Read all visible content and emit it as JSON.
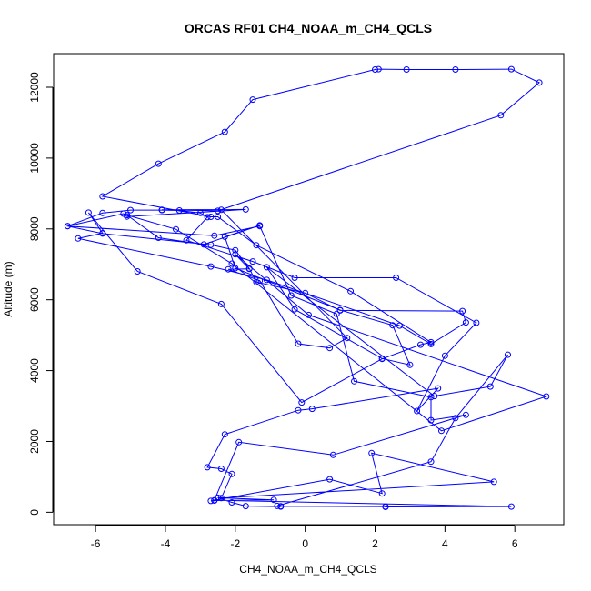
{
  "chart_data": {
    "type": "line",
    "title": "ORCAS RF01 CH4_NOAA_m_CH4_QCLS",
    "xlabel": "CH4_NOAA_m_CH4_QCLS",
    "ylabel": "Altitude (m)",
    "xlim": [
      -7.2,
      7.4
    ],
    "ylim": [
      -350,
      12950
    ],
    "x_ticks": [
      -6,
      -4,
      -2,
      0,
      2,
      4,
      6
    ],
    "y_ticks": [
      0,
      2000,
      4000,
      6000,
      8000,
      10000,
      12000
    ],
    "x_tick_labels": [
      "-6",
      "-4",
      "-2",
      "0",
      "2",
      "4",
      "6"
    ],
    "y_tick_labels": [
      "0",
      "2000",
      "4000",
      "6000",
      "8000",
      "10000",
      "12000"
    ],
    "grid": false,
    "legend": "none",
    "colors": {
      "series": "#0000ff",
      "axes": "#000000",
      "background": "#ffffff"
    },
    "series": [
      {
        "points": [
          [
            -0.7,
            160
          ],
          [
            -1.7,
            175
          ],
          [
            -2.1,
            280
          ],
          [
            -2.5,
            410
          ],
          [
            -0.9,
            350
          ],
          [
            -2.6,
            330
          ],
          [
            -2.7,
            320
          ],
          [
            0.7,
            930
          ],
          [
            2.2,
            530
          ],
          [
            1.9,
            1670
          ],
          [
            5.4,
            860
          ],
          [
            -2.4,
            400
          ],
          [
            -2.1,
            1080
          ],
          [
            -2.4,
            1230
          ],
          [
            -2.8,
            1270
          ],
          [
            -2.3,
            2200
          ],
          [
            -0.2,
            2880
          ],
          [
            0.2,
            2920
          ],
          [
            3.8,
            3500
          ],
          [
            3.2,
            2860
          ],
          [
            4.0,
            4420
          ],
          [
            4.9,
            5350
          ],
          [
            2.6,
            6620
          ],
          [
            -0.3,
            6620
          ],
          [
            -1.5,
            7080
          ],
          [
            -3.4,
            7680
          ],
          [
            -2.8,
            8330
          ],
          [
            -3.0,
            8450
          ],
          [
            -3.6,
            8520
          ],
          [
            -4.1,
            8530
          ],
          [
            -5.0,
            8530
          ],
          [
            -5.8,
            8450
          ],
          [
            -6.8,
            8080
          ],
          [
            -5.8,
            7870
          ],
          [
            -2.7,
            7550
          ],
          [
            -2.0,
            7400
          ],
          [
            -1.6,
            6880
          ],
          [
            -1.4,
            6500
          ],
          [
            0.0,
            6190
          ],
          [
            1.0,
            5700
          ],
          [
            4.5,
            5680
          ],
          [
            4.6,
            5360
          ],
          [
            3.6,
            4750
          ],
          [
            2.7,
            5270
          ],
          [
            -1.1,
            6560
          ],
          [
            -2.7,
            6940
          ],
          [
            -6.5,
            7730
          ],
          [
            -5.8,
            7880
          ],
          [
            -6.2,
            8460
          ],
          [
            -4.8,
            6800
          ],
          [
            -2.4,
            5880
          ],
          [
            -0.1,
            3100
          ],
          [
            2.2,
            4330
          ],
          [
            3.3,
            4730
          ],
          [
            3.6,
            4800
          ],
          [
            1.3,
            6240
          ],
          [
            -1.4,
            7540
          ],
          [
            -2.5,
            8340
          ],
          [
            -2.7,
            8340
          ],
          [
            -5.8,
            8920
          ],
          [
            -4.2,
            9840
          ],
          [
            -2.3,
            10740
          ],
          [
            -1.5,
            11650
          ],
          [
            2.0,
            12500
          ],
          [
            2.1,
            12510
          ],
          [
            2.9,
            12500
          ],
          [
            4.3,
            12500
          ],
          [
            5.9,
            12510
          ],
          [
            6.7,
            12130
          ],
          [
            5.6,
            11210
          ],
          [
            -2.5,
            8510
          ],
          [
            -4.1,
            8540
          ],
          [
            -1.7,
            8550
          ],
          [
            -5.1,
            8350
          ],
          [
            -5.2,
            8430
          ],
          [
            -6.8,
            8080
          ],
          [
            -2.6,
            7810
          ],
          [
            -1.3,
            8080
          ],
          [
            -0.4,
            6120
          ],
          [
            0.9,
            5600
          ],
          [
            1.4,
            3700
          ],
          [
            3.6,
            3250
          ],
          [
            3.6,
            2600
          ],
          [
            4.6,
            2750
          ],
          [
            0.8,
            1620
          ],
          [
            -1.9,
            1980
          ],
          [
            -2.6,
            340
          ],
          [
            5.9,
            160
          ],
          [
            2.3,
            150
          ],
          [
            2.3,
            160
          ],
          [
            -0.7,
            170
          ],
          [
            -0.8,
            180
          ],
          [
            3.6,
            1430
          ],
          [
            4.3,
            2660
          ],
          [
            5.8,
            4450
          ],
          [
            5.3,
            3550
          ],
          [
            3.7,
            3280
          ],
          [
            -1.1,
            6920
          ],
          [
            -0.3,
            5730
          ],
          [
            2.2,
            4340
          ],
          [
            3.0,
            4160
          ],
          [
            2.5,
            5280
          ],
          [
            1.0,
            5710
          ],
          [
            -2.0,
            6890
          ],
          [
            -2.3,
            7780
          ],
          [
            -1.3,
            8100
          ],
          [
            -2.9,
            7560
          ],
          [
            -4.2,
            7750
          ],
          [
            -5.1,
            8390
          ],
          [
            -3.7,
            7990
          ],
          [
            -2.1,
            7020
          ],
          [
            3.9,
            2300
          ],
          [
            6.9,
            3270
          ],
          [
            0.1,
            5570
          ],
          [
            -2.0,
            7280
          ],
          [
            -1.6,
            6870
          ],
          [
            -2.2,
            6860
          ],
          [
            -1.3,
            6540
          ],
          [
            -0.2,
            4760
          ],
          [
            0.7,
            4640
          ],
          [
            1.2,
            4920
          ],
          [
            -2.4,
            8540
          ]
        ]
      }
    ]
  }
}
